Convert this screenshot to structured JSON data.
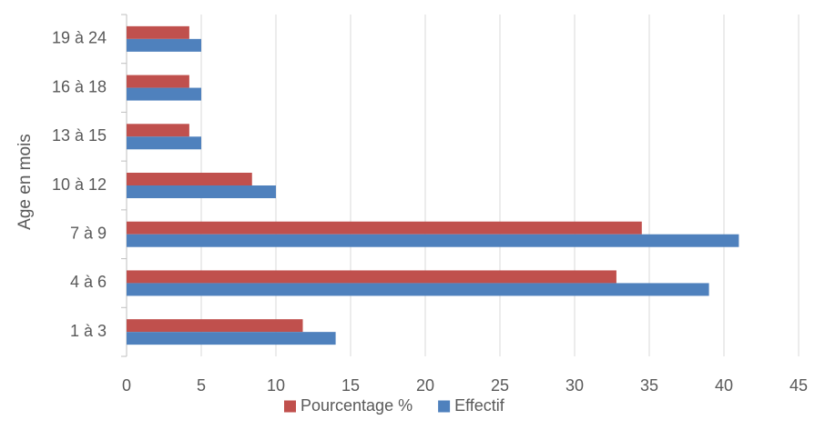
{
  "chart_data": {
    "type": "bar",
    "orientation": "horizontal",
    "title": "",
    "xlabel": "",
    "ylabel": "Age en mois",
    "categories": [
      "1 à 3",
      "4 à 6",
      "7 à 9",
      "10 à 12",
      "13 à 15",
      "16 à 18",
      "19 à 24"
    ],
    "series": [
      {
        "name": "Effectif",
        "color": "#4f81bd",
        "values": [
          14,
          39,
          41,
          10,
          5,
          5,
          5
        ]
      },
      {
        "name": "Pourcentage %",
        "color": "#c0504d",
        "values": [
          11.8,
          32.8,
          34.5,
          8.4,
          4.2,
          4.2,
          4.2
        ]
      }
    ],
    "xlim": [
      0,
      45
    ],
    "xticks": [
      0,
      5,
      10,
      15,
      20,
      25,
      30,
      35,
      40,
      45
    ],
    "grid": "vertical",
    "legend": {
      "position": "bottom",
      "order": [
        "Pourcentage %",
        "Effectif"
      ]
    }
  }
}
